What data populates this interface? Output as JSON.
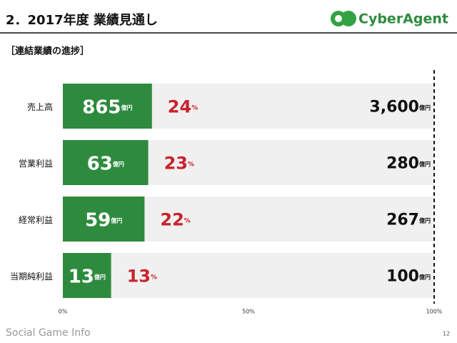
{
  "header": {
    "title": "2．2017年度 業績見通し",
    "logo": "CyberAgent"
  },
  "chart_data": {
    "type": "bar",
    "subtitle": "［連結業績の進捗］",
    "categories": [
      "売上高",
      "営業利益",
      "経常利益",
      "当期純利益"
    ],
    "values": [
      24,
      23,
      22,
      13
    ],
    "value_unit": "%",
    "actuals": [
      865,
      63,
      59,
      13
    ],
    "targets": [
      {
        "value": 3600,
        "label": "3,600"
      },
      280,
      267,
      100
    ],
    "amount_unit": "億円",
    "color": "#2e8b3e",
    "track_color": "#f0f0f0",
    "label_color": "#c8232c",
    "xlim": [
      0,
      100
    ],
    "xticks": [
      {
        "value": 0,
        "label": "0%"
      },
      {
        "value": 50,
        "label": "50%"
      },
      {
        "value": 100,
        "label": "100%"
      }
    ]
  },
  "footer": {
    "watermark": "Social Game Info",
    "page": "12"
  }
}
